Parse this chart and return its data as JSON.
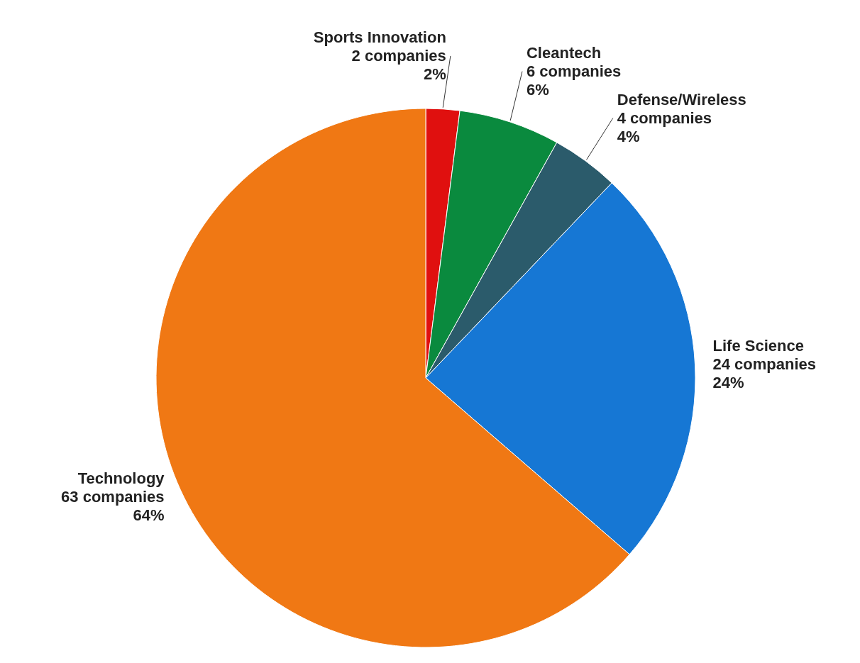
{
  "chart_data": {
    "type": "pie",
    "categories": [
      "Sports Innovation",
      "Cleantech",
      "Defense/Wireless",
      "Life Science",
      "Technology"
    ],
    "values": [
      2,
      6,
      4,
      24,
      63
    ],
    "value_labels": [
      "2 companies\n2%",
      "6 companies\n6%",
      "4 companies\n4%",
      "24 companies\n24%",
      "63 companies\n64%"
    ],
    "colors": [
      "#e0100f",
      "#0a8a3e",
      "#2b5b6b",
      "#1677d4",
      "#f07814"
    ],
    "legend": false
  }
}
